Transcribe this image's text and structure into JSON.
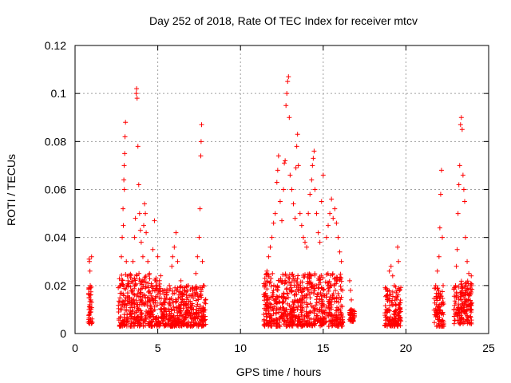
{
  "chart_data": {
    "type": "scatter",
    "title": "Day 252 of 2018, Rate Of TEC Index for receiver mtcv",
    "xlabel": "GPS time / hours",
    "ylabel": "ROTI / TECUs",
    "xlim": [
      0,
      25
    ],
    "ylim": [
      0,
      0.12
    ],
    "xticks": [
      0,
      5,
      10,
      15,
      20,
      25
    ],
    "xtick_labels": [
      "0",
      "5",
      "10",
      "15",
      "20",
      "25"
    ],
    "yticks": [
      0,
      0.02,
      0.04,
      0.06,
      0.08,
      0.1,
      0.12
    ],
    "ytick_labels": [
      "0",
      "0.02",
      "0.04",
      "0.06",
      "0.08",
      "0.1",
      "0.12"
    ],
    "grid": true,
    "legend": "none",
    "marker": "plus",
    "color": "#ff0000",
    "series": [
      {
        "points": [
          [
            0.85,
            0.031
          ],
          [
            0.87,
            0.03
          ],
          [
            0.9,
            0.026
          ],
          [
            0.92,
            0.02
          ],
          [
            0.95,
            0.014
          ],
          [
            0.97,
            0.01
          ],
          [
            0.88,
            0.008
          ],
          [
            0.93,
            0.006
          ],
          [
            1.0,
            0.032
          ],
          [
            0.91,
            0.016
          ],
          [
            0.96,
            0.005
          ],
          [
            0.89,
            0.012
          ],
          [
            2.75,
            0.02
          ],
          [
            2.8,
            0.032
          ],
          [
            2.85,
            0.04
          ],
          [
            2.9,
            0.052
          ],
          [
            2.95,
            0.064
          ],
          [
            2.97,
            0.07
          ],
          [
            3.0,
            0.075
          ],
          [
            3.02,
            0.082
          ],
          [
            3.05,
            0.088
          ],
          [
            2.98,
            0.06
          ],
          [
            2.92,
            0.045
          ],
          [
            3.1,
            0.03
          ],
          [
            3.2,
            0.022
          ],
          [
            3.3,
            0.015
          ],
          [
            3.4,
            0.012
          ],
          [
            3.5,
            0.03
          ],
          [
            3.6,
            0.04
          ],
          [
            3.65,
            0.048
          ],
          [
            3.7,
            0.1
          ],
          [
            3.72,
            0.102
          ],
          [
            3.75,
            0.098
          ],
          [
            3.8,
            0.078
          ],
          [
            3.85,
            0.062
          ],
          [
            3.9,
            0.05
          ],
          [
            3.95,
            0.043
          ],
          [
            4.0,
            0.038
          ],
          [
            4.1,
            0.032
          ],
          [
            4.15,
            0.045
          ],
          [
            4.2,
            0.054
          ],
          [
            4.25,
            0.05
          ],
          [
            4.3,
            0.042
          ],
          [
            4.4,
            0.03
          ],
          [
            4.5,
            0.025
          ],
          [
            4.6,
            0.02
          ],
          [
            4.7,
            0.035
          ],
          [
            4.8,
            0.047
          ],
          [
            4.9,
            0.018
          ],
          [
            5.0,
            0.032
          ],
          [
            3.3,
            0.008
          ],
          [
            3.5,
            0.006
          ],
          [
            3.8,
            0.005
          ],
          [
            4.0,
            0.007
          ],
          [
            4.3,
            0.006
          ],
          [
            4.6,
            0.009
          ],
          [
            4.9,
            0.006
          ],
          [
            3.1,
            0.01
          ],
          [
            3.6,
            0.011
          ],
          [
            4.2,
            0.012
          ],
          [
            5.3,
            0.012
          ],
          [
            5.5,
            0.01
          ],
          [
            5.7,
            0.02
          ],
          [
            5.85,
            0.028
          ],
          [
            5.9,
            0.032
          ],
          [
            6.0,
            0.036
          ],
          [
            6.1,
            0.042
          ],
          [
            6.2,
            0.03
          ],
          [
            6.4,
            0.022
          ],
          [
            6.6,
            0.018
          ],
          [
            6.8,
            0.015
          ],
          [
            7.0,
            0.012
          ],
          [
            7.2,
            0.018
          ],
          [
            7.3,
            0.025
          ],
          [
            7.4,
            0.032
          ],
          [
            7.5,
            0.04
          ],
          [
            7.55,
            0.052
          ],
          [
            7.6,
            0.074
          ],
          [
            7.62,
            0.08
          ],
          [
            7.65,
            0.087
          ],
          [
            7.7,
            0.03
          ],
          [
            7.75,
            0.02
          ],
          [
            5.4,
            0.006
          ],
          [
            5.8,
            0.007
          ],
          [
            6.3,
            0.005
          ],
          [
            6.7,
            0.008
          ],
          [
            7.1,
            0.006
          ],
          [
            7.45,
            0.007
          ],
          [
            11.5,
            0.02
          ],
          [
            11.6,
            0.026
          ],
          [
            11.7,
            0.032
          ],
          [
            11.8,
            0.036
          ],
          [
            11.9,
            0.04
          ],
          [
            12.0,
            0.046
          ],
          [
            12.1,
            0.05
          ],
          [
            12.2,
            0.063
          ],
          [
            12.25,
            0.068
          ],
          [
            12.3,
            0.074
          ],
          [
            12.4,
            0.055
          ],
          [
            12.5,
            0.047
          ],
          [
            12.6,
            0.06
          ],
          [
            12.65,
            0.071
          ],
          [
            12.7,
            0.072
          ],
          [
            12.75,
            0.095
          ],
          [
            12.8,
            0.1
          ],
          [
            12.85,
            0.105
          ],
          [
            12.9,
            0.107
          ],
          [
            12.95,
            0.09
          ],
          [
            13.0,
            0.066
          ],
          [
            13.1,
            0.06
          ],
          [
            13.2,
            0.054
          ],
          [
            13.3,
            0.048
          ],
          [
            13.35,
            0.069
          ],
          [
            13.4,
            0.078
          ],
          [
            13.45,
            0.083
          ],
          [
            13.5,
            0.07
          ],
          [
            13.6,
            0.05
          ],
          [
            13.7,
            0.045
          ],
          [
            13.8,
            0.04
          ],
          [
            13.9,
            0.038
          ],
          [
            14.0,
            0.036
          ],
          [
            14.1,
            0.05
          ],
          [
            14.2,
            0.058
          ],
          [
            14.3,
            0.064
          ],
          [
            14.35,
            0.07
          ],
          [
            14.4,
            0.073
          ],
          [
            14.45,
            0.076
          ],
          [
            14.5,
            0.06
          ],
          [
            14.6,
            0.05
          ],
          [
            14.7,
            0.042
          ],
          [
            14.8,
            0.038
          ],
          [
            14.9,
            0.055
          ],
          [
            15.0,
            0.066
          ],
          [
            11.8,
            0.007
          ],
          [
            12.2,
            0.006
          ],
          [
            12.6,
            0.008
          ],
          [
            13.0,
            0.005
          ],
          [
            13.4,
            0.007
          ],
          [
            13.8,
            0.006
          ],
          [
            14.2,
            0.009
          ],
          [
            14.6,
            0.007
          ],
          [
            15.0,
            0.005
          ],
          [
            12.4,
            0.01
          ],
          [
            13.2,
            0.012
          ],
          [
            14.0,
            0.011
          ],
          [
            15.2,
            0.04
          ],
          [
            15.3,
            0.045
          ],
          [
            15.4,
            0.05
          ],
          [
            15.5,
            0.056
          ],
          [
            15.6,
            0.048
          ],
          [
            15.7,
            0.052
          ],
          [
            15.8,
            0.046
          ],
          [
            15.9,
            0.04
          ],
          [
            16.0,
            0.034
          ],
          [
            16.1,
            0.03
          ],
          [
            15.3,
            0.02
          ],
          [
            15.5,
            0.012
          ],
          [
            15.7,
            0.008
          ],
          [
            15.9,
            0.005
          ],
          [
            16.05,
            0.006
          ],
          [
            15.45,
            0.004
          ],
          [
            16.6,
            0.022
          ],
          [
            16.65,
            0.018
          ],
          [
            16.7,
            0.01
          ],
          [
            16.75,
            0.008
          ],
          [
            16.8,
            0.006
          ],
          [
            16.7,
            0.014
          ],
          [
            18.8,
            0.01
          ],
          [
            18.9,
            0.018
          ],
          [
            19.0,
            0.026
          ],
          [
            19.1,
            0.028
          ],
          [
            19.2,
            0.024
          ],
          [
            19.3,
            0.02
          ],
          [
            19.4,
            0.015
          ],
          [
            19.5,
            0.036
          ],
          [
            19.55,
            0.03
          ],
          [
            19.6,
            0.012
          ],
          [
            19.0,
            0.006
          ],
          [
            19.3,
            0.005
          ],
          [
            19.5,
            0.008
          ],
          [
            21.8,
            0.02
          ],
          [
            21.9,
            0.026
          ],
          [
            22.0,
            0.032
          ],
          [
            22.05,
            0.044
          ],
          [
            22.1,
            0.058
          ],
          [
            22.15,
            0.068
          ],
          [
            22.2,
            0.04
          ],
          [
            22.25,
            0.02
          ],
          [
            21.95,
            0.008
          ],
          [
            22.1,
            0.005
          ],
          [
            22.2,
            0.012
          ],
          [
            21.85,
            0.012
          ],
          [
            23.0,
            0.02
          ],
          [
            23.05,
            0.028
          ],
          [
            23.1,
            0.035
          ],
          [
            23.15,
            0.05
          ],
          [
            23.2,
            0.062
          ],
          [
            23.25,
            0.07
          ],
          [
            23.3,
            0.087
          ],
          [
            23.35,
            0.09
          ],
          [
            23.4,
            0.085
          ],
          [
            23.45,
            0.066
          ],
          [
            23.5,
            0.06
          ],
          [
            23.55,
            0.055
          ],
          [
            23.6,
            0.04
          ],
          [
            23.7,
            0.03
          ],
          [
            23.8,
            0.025
          ],
          [
            23.9,
            0.02
          ],
          [
            23.95,
            0.024
          ],
          [
            23.1,
            0.008
          ],
          [
            23.3,
            0.006
          ],
          [
            23.5,
            0.009
          ],
          [
            23.7,
            0.007
          ],
          [
            23.9,
            0.01
          ],
          [
            23.2,
            0.012
          ],
          [
            23.6,
            0.013
          ]
        ],
        "dense_bands": [
          {
            "x": [
              0.8,
              1.05
            ],
            "y": [
              0.004,
              0.02
            ]
          },
          {
            "x": [
              2.6,
              5.2
            ],
            "y": [
              0.003,
              0.025
            ]
          },
          {
            "x": [
              5.2,
              7.9
            ],
            "y": [
              0.003,
              0.02
            ]
          },
          {
            "x": [
              11.4,
              15.2
            ],
            "y": [
              0.003,
              0.025
            ]
          },
          {
            "x": [
              15.2,
              16.2
            ],
            "y": [
              0.003,
              0.025
            ]
          },
          {
            "x": [
              16.6,
              16.9
            ],
            "y": [
              0.005,
              0.01
            ]
          },
          {
            "x": [
              18.7,
              19.7
            ],
            "y": [
              0.003,
              0.02
            ]
          },
          {
            "x": [
              21.7,
              22.3
            ],
            "y": [
              0.003,
              0.02
            ]
          },
          {
            "x": [
              22.9,
              24.0
            ],
            "y": [
              0.004,
              0.022
            ]
          }
        ]
      }
    ]
  }
}
